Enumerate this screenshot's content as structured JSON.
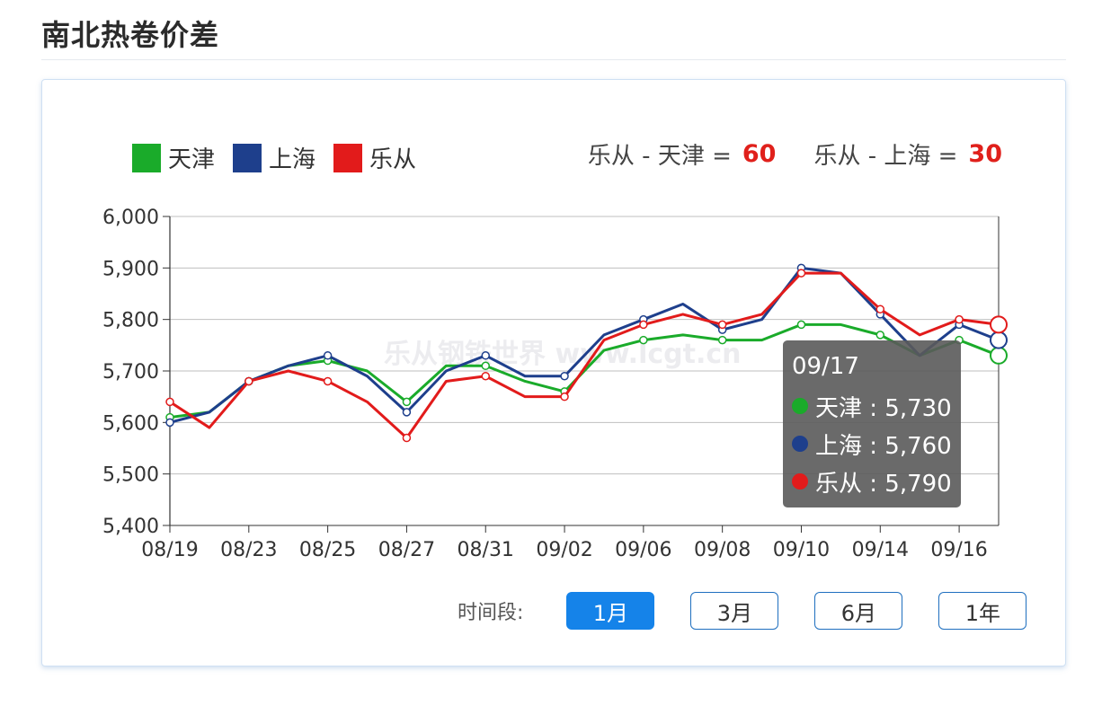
{
  "title": "南北热卷价差",
  "legend": [
    {
      "label": "天津",
      "color": "#1aab2a"
    },
    {
      "label": "上海",
      "color": "#1e3f8c"
    },
    {
      "label": "乐从",
      "color": "#e21b1b"
    }
  ],
  "diffs": [
    {
      "label": "乐从 - 天津 =",
      "value": "60"
    },
    {
      "label": "乐从 - 上海 =",
      "value": "30"
    }
  ],
  "tooltip": {
    "date": "09/17",
    "rows": [
      {
        "label": "天津 : 5,730",
        "color": "#1aab2a"
      },
      {
        "label": "上海 : 5,760",
        "color": "#1e3f8c"
      },
      {
        "label": "乐从 : 5,790",
        "color": "#e21b1b"
      }
    ]
  },
  "range": {
    "label": "时间段:",
    "buttons": [
      "1月",
      "3月",
      "6月",
      "1年"
    ],
    "active": 0
  },
  "watermark": "乐从钢铁世界 www.lcgt.cn",
  "chart_data": {
    "type": "line",
    "ylim": [
      5400,
      6000
    ],
    "y_ticks": [
      "5,400",
      "5,500",
      "5,600",
      "5,700",
      "5,800",
      "5,900",
      "6,000"
    ],
    "x_tick_labels": [
      "08/19",
      "08/23",
      "08/25",
      "08/27",
      "08/31",
      "09/02",
      "09/06",
      "09/08",
      "09/10",
      "09/14",
      "09/16"
    ],
    "x_count": 22,
    "series": [
      {
        "name": "天津",
        "color": "#1aab2a",
        "values": [
          5610,
          5620,
          5680,
          5710,
          5720,
          5700,
          5640,
          5710,
          5710,
          5680,
          5660,
          5740,
          5760,
          5770,
          5760,
          5760,
          5790,
          5790,
          5770,
          5730,
          5760,
          5730
        ]
      },
      {
        "name": "上海",
        "color": "#1e3f8c",
        "values": [
          5600,
          5620,
          5680,
          5710,
          5730,
          5690,
          5620,
          5700,
          5730,
          5690,
          5690,
          5770,
          5800,
          5830,
          5780,
          5800,
          5900,
          5890,
          5810,
          5730,
          5790,
          5760
        ]
      },
      {
        "name": "乐从",
        "color": "#e21b1b",
        "values": [
          5640,
          5590,
          5680,
          5700,
          5680,
          5640,
          5570,
          5680,
          5690,
          5650,
          5650,
          5760,
          5790,
          5810,
          5790,
          5810,
          5890,
          5890,
          5820,
          5770,
          5800,
          5790
        ]
      }
    ]
  }
}
